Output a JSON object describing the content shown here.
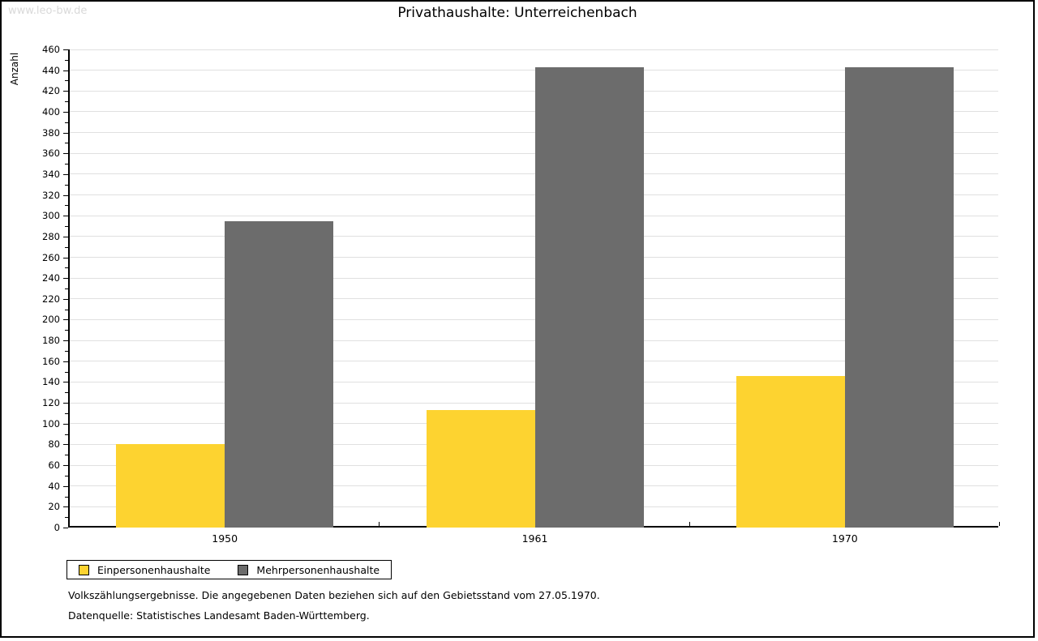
{
  "watermark": "www.leo-bw.de",
  "title": "Privathaushalte: Unterreichenbach",
  "chart_data": {
    "type": "bar",
    "title": "Privathaushalte: Unterreichenbach",
    "ylabel": "Anzahl",
    "xlabel": "",
    "categories": [
      "1950",
      "1961",
      "1970"
    ],
    "series": [
      {
        "name": "Einpersonenhaushalte",
        "color": "#FDD330",
        "values": [
          80,
          113,
          146
        ]
      },
      {
        "name": "Mehrpersonenhaushalte",
        "color": "#6C6C6C",
        "values": [
          295,
          443,
          443
        ]
      }
    ],
    "ylim": [
      0,
      460
    ],
    "ytick_step": 20,
    "minor_tick_step": 10,
    "grid": true,
    "gridline_color": "#e0e0e0",
    "legend_position": "bottom-left"
  },
  "footer": {
    "line1": "Volkszählungsergebnisse. Die angegebenen Daten beziehen sich auf den Gebietsstand vom 27.05.1970.",
    "line2": "Datenquelle: Statistisches Landesamt Baden-Württemberg."
  }
}
